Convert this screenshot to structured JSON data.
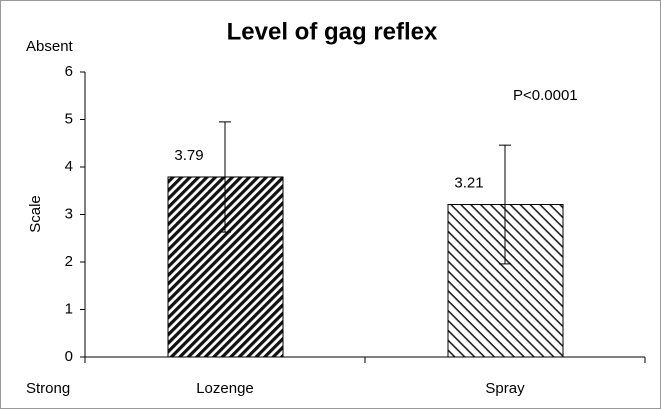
{
  "chart_data": {
    "type": "bar",
    "title": "Level of gag reflex",
    "y_label": "Scale",
    "categories": [
      "Lozenge",
      "Spray"
    ],
    "values": [
      3.79,
      3.21
    ],
    "errors": [
      1.16,
      1.25
    ],
    "ylim": [
      0,
      6
    ],
    "yticks": [
      0,
      1,
      2,
      3,
      4,
      5,
      6
    ],
    "annotations": [
      "Absent",
      "Strong",
      "P<0.0001"
    ]
  }
}
